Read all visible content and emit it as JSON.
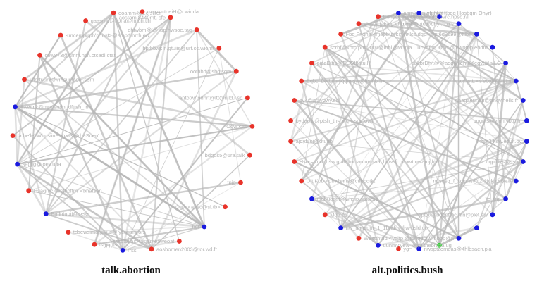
{
  "panels": [
    {
      "id": "left",
      "caption": "talk.abortion",
      "edge_color": "#b8b8b8",
      "nodes": [
        {
          "label": "gaasmo@t ona@mtuh.tih",
          "color": "#e8332a"
        },
        {
          "label": "ooamm@p.c sliter",
          "color": "#e8332a"
        },
        {
          "label": "mnsmctoeiH@r.wiuda",
          "color": "#e8332a"
        },
        {
          "label": "aosrom 8440mt. sfe",
          "color": "#e8332a"
        },
        {
          "label": "ohtwbm@'@.isp.hwsoe.taq",
          "color": "#e8332a"
        },
        {
          "label": "hptbbws n.gtuiis@urt.cc.wiomt",
          "color": "#e8332a"
        },
        {
          "label": "oothbd@shqjsqm",
          "color": "#e8332a"
        },
        {
          "label": "antotwnndhrt@ltt@nlld.r.sd",
          "color": "#e8332a"
        },
        {
          "label": "Ogw <ttc",
          "color": "#e8332a"
        },
        {
          "label": "bdgos5@5ra.talk",
          "color": "#e8332a"
        },
        {
          "label": "tpjd",
          "color": "#e8332a"
        },
        {
          "label": "Ogw <ahsc@sl.tb>",
          "color": "#e8332a"
        },
        {
          "label": "hsr",
          "color": "#1a1adf"
        },
        {
          "label": "tasptbtia@tasplmeaweoat",
          "color": "#e8332a"
        },
        {
          "label": "aosbomen2003@tor.wd.fr",
          "color": "#e8332a"
        },
        {
          "label": "rrss",
          "color": "#1a1adf"
        },
        {
          "label": "lsgjq(fis",
          "color": "#e8332a"
        },
        {
          "label": "tdsewsimatjeyus@jyt.nwmt.ors",
          "color": "#e8332a"
        },
        {
          "label": "Emlntupit@sete",
          "color": "#1a1adf"
        },
        {
          "label": "Hsagmc Grsthoffm' <bhatsan",
          "color": "#e8332a"
        },
        {
          "label": "sagjig@joey.uba",
          "color": "#1a1adf"
        },
        {
          "label": "'a be'le' Whusiine' <pa3@rhaSoen'",
          "color": "#e8332a"
        },
        {
          "label": "Awwmk@mrwendh_dfttsh_Inh",
          "color": "#1a1adf"
        },
        {
          "label": "lutsrtuurwtfwmsur.tssol.com",
          "color": "#e8332a"
        },
        {
          "label": "cow873@ftmm.ntih.ctcadl.ctat",
          "color": "#e8332a"
        },
        {
          "label": "<mcemp/rph'n Inst>@smptf.nrrh.ew",
          "color": "#e8332a"
        }
      ]
    },
    {
      "id": "right",
      "caption": "alt.politics.bush",
      "edge_color": "#b8b8b8",
      "nodes": [
        {
          "label": "ahmk.pm ptpfsyn",
          "color": "#1a1adf"
        },
        {
          "label": "wrbtr4@ttbqq Hosbqm Ohyr)",
          "color": "#1a1adf"
        },
        {
          "label": "@p8vbmd",
          "color": "#1a1adf"
        },
        {
          "label": "mpfl@ntu@dhyr.b.g.s",
          "color": "#1a1adf"
        },
        {
          "label": "@pt6d9099@ttlbu",
          "color": "#1a1adf"
        },
        {
          "label": "uc2dfhrDrrnc'@thwomp.ehdm",
          "color": "#1a1adf"
        },
        {
          "label": "sbkbrDfvt@@aqqtyt'ehu@eqyt@n.LC",
          "color": "#1a1adf"
        },
        {
          "label": "alc.wtL <s'ecob@aejm",
          "color": "#1a1adf"
        },
        {
          "label": "daagaeuntm@rmqy'hells.fr",
          "color": "#1a1adf"
        },
        {
          "label": "pqgms@ynm.vbtp.hf",
          "color": "#1a1adf"
        },
        {
          "label": "lhqpt3 hsw.ecult.ov",
          "color": "#1a1adf"
        },
        {
          "label": "uqpfbes@ssu",
          "color": "#1a1adf"
        },
        {
          "label": "ndsqsq_f_xcnms@l2r2iuk>.sda.b",
          "color": "#1a1adf"
        },
        {
          "label": "'tc <np",
          "color": "#1a1adf"
        },
        {
          "label": "spt@@bdbpfthc.nfn@plet.ew",
          "color": "#1a1adf"
        },
        {
          "label": "",
          "color": "#1a1adf"
        },
        {
          "label": "Ertthtdd <ydjfp @fonqdfaw.lhbbp@n",
          "color": "#1a1adf"
        },
        {
          "label": "",
          "color": "#33d633"
        },
        {
          "label": "nwsptzomeas@4hlbsaen.pla",
          "color": "#1a1adf"
        },
        {
          "label": "yg",
          "color": "#e8332a"
        },
        {
          "label": "uunmy'yew_ehpl.thebrtsta.ug",
          "color": "#1a1adf"
        },
        {
          "label": "WTg",
          "color": "#e8332a"
        },
        {
          "label": "nw_minsunr_1_1brahnhftw-usld.ct",
          "color": "#1a1adf"
        },
        {
          "label": "Mqq hd",
          "color": "#e8332a"
        },
        {
          "label": "rsqbuqsht@whsip.spt.vsib",
          "color": "#1a1adf"
        },
        {
          "label": "Uft Kob <ubwbnns@ctfbbdtkt",
          "color": "#e8332a"
        },
        {
          "label": "Hsor=rmo (hsw.gulleltnc.antuonwar.hcwsfi.pu.xvt.uwamjdo0",
          "color": "#e8332a"
        },
        {
          "label": "ajdyfuoi@dtuttbl",
          "color": "#e8332a"
        },
        {
          "label": "bydaptb@ptsh_th< yfqw sprnow)",
          "color": "#e8332a"
        },
        {
          "label": "cy4@sfaydwy.ssl",
          "color": "#e8332a"
        },
        {
          "label": "Eqbcl Dwbij <sqqnpsw@hstnbm>",
          "color": "#e8332a"
        },
        {
          "label": "ejaeDltib@ECOfbstu.lil",
          "color": "#e8332a"
        },
        {
          "label": "scrbf@khtctpng2001@lhhl@M.mia",
          "color": "#e8332a"
        },
        {
          "label": "Fbq Frkma <mapbuwk@nnlcs.dgp>",
          "color": "#e8332a"
        },
        {
          "label": "eiqstaqabaig ahb.cwm",
          "color": "#e8332a"
        },
        {
          "label": "Eonsay <phdrmat@nltc.ovrc.hpsq.r/l",
          "color": "#e8332a"
        }
      ]
    }
  ]
}
